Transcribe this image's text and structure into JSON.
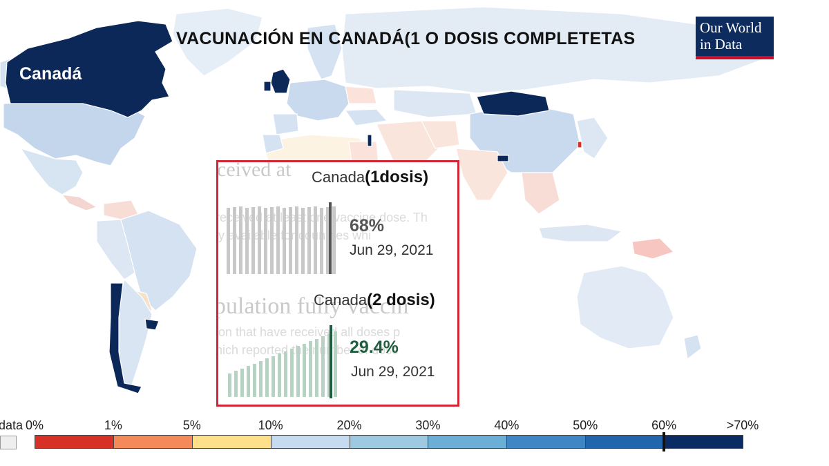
{
  "title": "VACUNACIÓN EN CANADÁ(1 O DOSIS COMPLETETAS",
  "logo": {
    "line1": "Our World",
    "line2": "in Data"
  },
  "highlight_label": "Canadá",
  "inset": {
    "ghost_1": "ceived at",
    "ghost_2": "pulation fully vaccin",
    "ghost_3": "received at least one vaccine dose. Th",
    "ghost_4": "ly available for countries whi",
    "ghost_5": "ion that have received all doses p",
    "ghost_6": "hich reported the number of dose",
    "dose1": {
      "country": "Canada",
      "dose_label": "(1dosis)",
      "value": "68%",
      "date": "Jun 29, 2021",
      "color": "#555555"
    },
    "dose2": {
      "country": "Canada",
      "dose_label": "(2 dosis)",
      "value": "29.4%",
      "date": "Jun 29, 2021",
      "color": "#1e5e3e"
    }
  },
  "legend": {
    "no_data_label": "No data",
    "ticks": [
      "0%",
      "1%",
      "5%",
      "10%",
      "20%",
      "30%",
      "40%",
      "50%",
      "60%",
      ">70%"
    ],
    "colors": [
      "#d73027",
      "#f4895a",
      "#fee08b",
      "#c6dbef",
      "#9ecae1",
      "#6baed6",
      "#3f86c6",
      "#2166ac",
      "#0b2b64"
    ],
    "no_data_color": "#eeeeee"
  },
  "colors": {
    "highlight": "#0b2859",
    "land_light": "#dfe9f4",
    "land_mid": "#c9daee",
    "land_warm": "#fbe3dc",
    "inset_border": "#d02636",
    "logo_bg": "#0d2b5c",
    "logo_accent": "#c8102e"
  }
}
